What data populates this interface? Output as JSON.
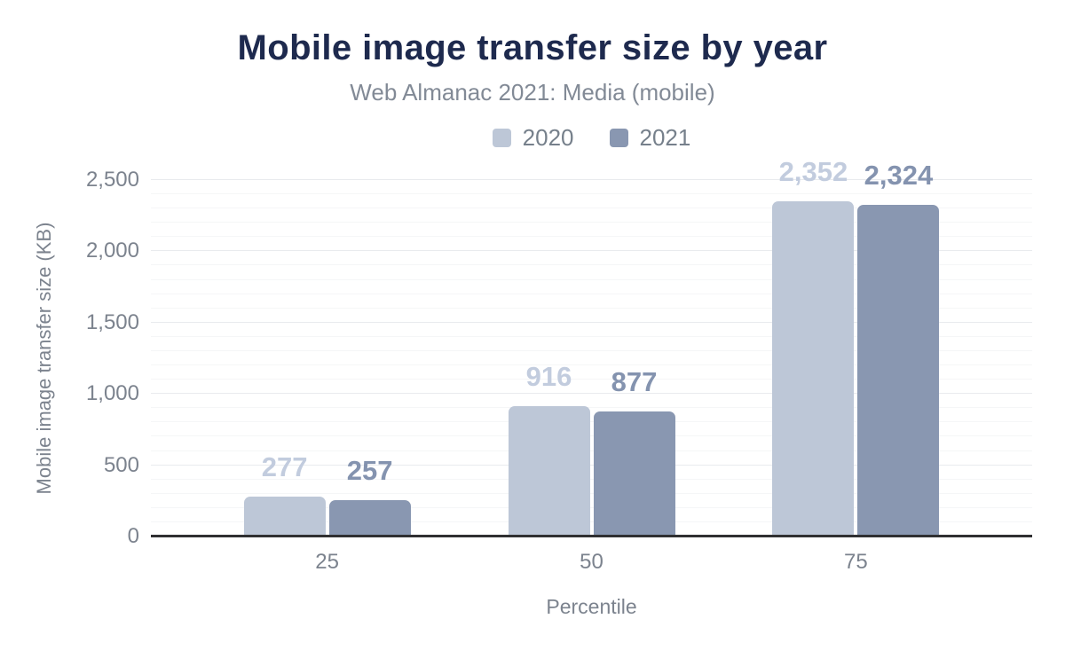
{
  "chart_data": {
    "type": "bar",
    "title": "Mobile image transfer size by year",
    "subtitle": "Web Almanac 2021: Media (mobile)",
    "xlabel": "Percentile",
    "ylabel": "Mobile image transfer size (KB)",
    "categories": [
      "25",
      "50",
      "75"
    ],
    "series": [
      {
        "name": "2020",
        "values": [
          277,
          916,
          2352
        ],
        "value_labels": [
          "277",
          "916",
          "2,352"
        ],
        "bar_color": "#bdc7d7",
        "label_color": "#c2ccde"
      },
      {
        "name": "2021",
        "values": [
          257,
          877,
          2324
        ],
        "value_labels": [
          "257",
          "877",
          "2,324"
        ],
        "bar_color": "#8997b1",
        "label_color": "#8493af"
      }
    ],
    "ylim": [
      0,
      2500
    ],
    "yticks": [
      {
        "value": 0,
        "label": "0"
      },
      {
        "value": 500,
        "label": "500"
      },
      {
        "value": 1000,
        "label": "1,000"
      },
      {
        "value": 1500,
        "label": "1,500"
      },
      {
        "value": 2000,
        "label": "2,000"
      },
      {
        "value": 2500,
        "label": "2,500"
      }
    ],
    "grid": {
      "minor_step": 100,
      "major_step": 500,
      "minor_color": "#f5f6f7",
      "major_color": "#e9ebee"
    },
    "legend_position": "top",
    "group_centers_pct": [
      20,
      50,
      80
    ],
    "colors": {
      "title": "#1e2a4e",
      "subtitle": "#828a96",
      "axis_text": "#7c838e",
      "legend_text": "#76808b",
      "baseline": "#303032"
    }
  }
}
